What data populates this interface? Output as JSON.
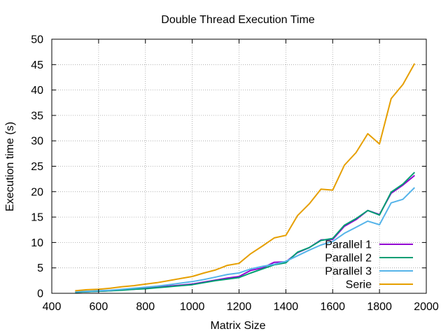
{
  "chart_data": {
    "type": "line",
    "title": "Double Thread Execution Time",
    "xlabel": "Matrix Size",
    "ylabel": "Execution time (s)",
    "xlim": [
      400,
      2000
    ],
    "ylim": [
      0,
      50
    ],
    "xticks": [
      400,
      600,
      800,
      1000,
      1200,
      1400,
      1600,
      1800,
      2000
    ],
    "yticks": [
      0,
      5,
      10,
      15,
      20,
      25,
      30,
      35,
      40,
      45,
      50
    ],
    "grid": true,
    "legend_position": "bottom-right",
    "x": [
      500,
      550,
      600,
      650,
      700,
      750,
      800,
      850,
      900,
      950,
      1000,
      1050,
      1100,
      1150,
      1200,
      1250,
      1300,
      1350,
      1400,
      1450,
      1500,
      1550,
      1600,
      1650,
      1700,
      1750,
      1800,
      1850,
      1900,
      1950
    ],
    "series": [
      {
        "name": "Parallel 1",
        "color": "#9400d3",
        "values": [
          0.2,
          0.3,
          0.4,
          0.5,
          0.7,
          0.8,
          1.0,
          1.2,
          1.4,
          1.6,
          1.8,
          2.2,
          2.6,
          3.0,
          3.3,
          4.5,
          5.0,
          6.1,
          6.2,
          8.0,
          9.0,
          10.5,
          10.6,
          13.2,
          14.5,
          16.3,
          15.5,
          19.7,
          21.3,
          23.2
        ]
      },
      {
        "name": "Parallel 2",
        "color": "#009e73",
        "values": [
          0.2,
          0.3,
          0.4,
          0.5,
          0.6,
          0.8,
          0.9,
          1.1,
          1.3,
          1.5,
          1.7,
          2.1,
          2.5,
          2.8,
          3.1,
          4.0,
          4.8,
          5.6,
          6.0,
          8.1,
          9.0,
          10.4,
          10.8,
          13.4,
          14.7,
          16.3,
          15.4,
          19.9,
          21.5,
          23.8
        ]
      },
      {
        "name": "Parallel 3",
        "color": "#56b4e9",
        "values": [
          0.3,
          0.4,
          0.5,
          0.6,
          0.8,
          1.0,
          1.2,
          1.4,
          1.7,
          2.0,
          2.3,
          2.7,
          3.2,
          3.7,
          4.0,
          4.8,
          5.3,
          5.7,
          6.3,
          7.4,
          8.5,
          9.5,
          10.2,
          11.8,
          13.0,
          14.2,
          13.5,
          17.8,
          18.5,
          20.8
        ]
      },
      {
        "name": "Serie",
        "color": "#e69f00",
        "values": [
          0.5,
          0.7,
          0.8,
          1.0,
          1.3,
          1.5,
          1.8,
          2.1,
          2.5,
          2.9,
          3.3,
          4.0,
          4.6,
          5.5,
          5.9,
          7.8,
          9.3,
          10.9,
          11.4,
          15.3,
          17.6,
          20.5,
          20.3,
          25.2,
          27.7,
          31.4,
          29.4,
          38.3,
          41.1,
          45.2
        ]
      }
    ]
  }
}
